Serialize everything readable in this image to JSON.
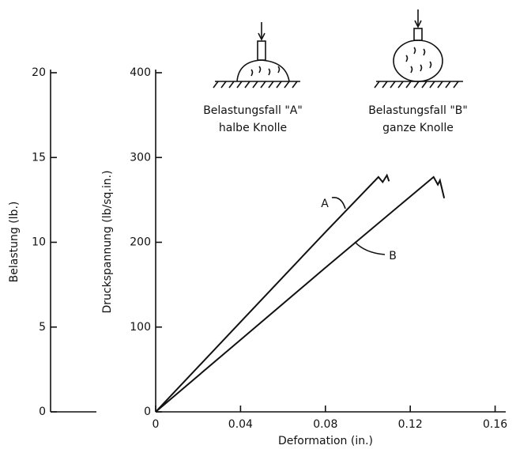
{
  "chart_data": {
    "type": "line",
    "xlabel": "Deformation (in.)",
    "ylabel": "Druckspannung (lb/sq.in.)",
    "y2label": "Belastung (lb.)",
    "case_a_title": "Belastungsfall \"A\"",
    "case_a_subtitle": "halbe Knolle",
    "case_b_title": "Belastungsfall \"B\"",
    "case_b_subtitle": "ganze Knolle",
    "xlim": [
      0,
      0.165
    ],
    "xticks": [
      0,
      0.04,
      0.08,
      0.12,
      0.16
    ],
    "ylim": [
      0,
      400
    ],
    "yticks": [
      0,
      100,
      200,
      300,
      400
    ],
    "y2lim": [
      0,
      20
    ],
    "y2ticks": [
      0,
      5,
      10,
      15,
      20
    ],
    "series": [
      {
        "name": "A",
        "color": "#111111",
        "x": [
          0,
          0.04,
          0.08,
          0.105,
          0.107,
          0.109,
          0.11
        ],
        "values": [
          0,
          106,
          212,
          277,
          271,
          279,
          272
        ]
      },
      {
        "name": "B",
        "color": "#111111",
        "x": [
          0,
          0.04,
          0.08,
          0.12,
          0.131,
          0.133,
          0.134,
          0.136
        ],
        "values": [
          0,
          85,
          170,
          254,
          277,
          268,
          273,
          252
        ]
      }
    ]
  }
}
